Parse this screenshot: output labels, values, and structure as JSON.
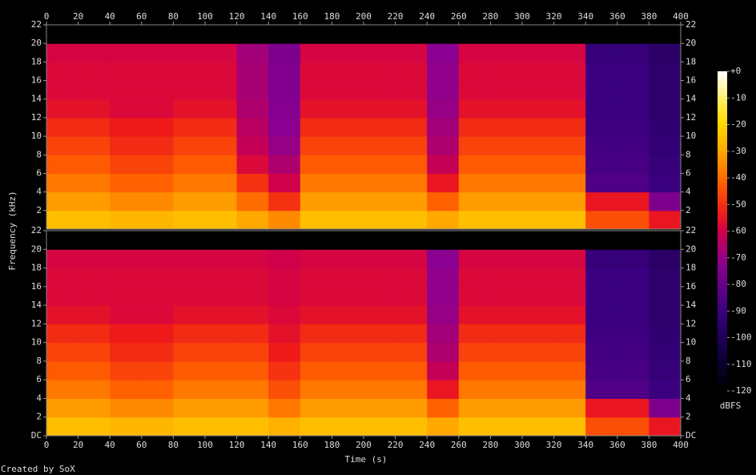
{
  "chart_data": {
    "type": "spectrogram",
    "x_label": "Time (s)",
    "y_label": "Frequency (kHz)",
    "footer": "Created by SoX",
    "xlim": [
      0,
      400
    ],
    "xticks": [
      0,
      20,
      40,
      60,
      80,
      100,
      120,
      140,
      160,
      180,
      200,
      220,
      240,
      260,
      280,
      300,
      320,
      340,
      360,
      380,
      400
    ],
    "time_bins": [
      0,
      20,
      40,
      60,
      80,
      100,
      120,
      140,
      160,
      180,
      200,
      220,
      240,
      260,
      280,
      300,
      320,
      340,
      360,
      380,
      400
    ],
    "freq_bins": [
      0,
      2,
      4,
      6,
      8,
      10,
      12,
      14,
      16,
      18,
      20,
      22
    ],
    "clim": [
      -120,
      0
    ],
    "clabel": "dBFS",
    "cticks": [
      {
        "value": 0,
        "label": "+0"
      },
      -10,
      -20,
      -30,
      -40,
      -50,
      -60,
      -70,
      -80,
      -90,
      -100,
      -110,
      -120
    ],
    "panels": [
      {
        "ylim": [
          0,
          22
        ],
        "yticks": [
          2,
          4,
          6,
          8,
          10,
          12,
          14,
          16,
          18,
          20,
          22
        ],
        "values": [
          [
            -25,
            -32,
            -38,
            -43,
            -47,
            -51,
            -56,
            -58,
            -58,
            -59,
            -120
          ],
          [
            -25,
            -32,
            -38,
            -43,
            -47,
            -51,
            -56,
            -58,
            -58,
            -59,
            -120
          ],
          [
            -27,
            -35,
            -42,
            -47,
            -51,
            -54,
            -58,
            -58,
            -58,
            -59,
            -120
          ],
          [
            -27,
            -35,
            -42,
            -47,
            -51,
            -54,
            -58,
            -58,
            -58,
            -59,
            -120
          ],
          [
            -25,
            -32,
            -38,
            -43,
            -47,
            -51,
            -56,
            -58,
            -58,
            -59,
            -120
          ],
          [
            -25,
            -32,
            -38,
            -43,
            -47,
            -51,
            -56,
            -58,
            -58,
            -59,
            -120
          ],
          [
            -30,
            -40,
            -50,
            -58,
            -62,
            -64,
            -66,
            -67,
            -67,
            -68,
            -120
          ],
          [
            -35,
            -50,
            -60,
            -66,
            -70,
            -72,
            -73,
            -74,
            -74,
            -75,
            -120
          ],
          [
            -25,
            -32,
            -38,
            -43,
            -47,
            -51,
            -56,
            -58,
            -58,
            -59,
            -120
          ],
          [
            -25,
            -32,
            -38,
            -43,
            -47,
            -51,
            -56,
            -58,
            -58,
            -59,
            -120
          ],
          [
            -25,
            -32,
            -38,
            -43,
            -47,
            -51,
            -56,
            -58,
            -58,
            -59,
            -120
          ],
          [
            -25,
            -32,
            -38,
            -43,
            -47,
            -51,
            -56,
            -58,
            -58,
            -59,
            -120
          ],
          [
            -30,
            -42,
            -55,
            -62,
            -66,
            -68,
            -70,
            -71,
            -71,
            -72,
            -120
          ],
          [
            -25,
            -32,
            -38,
            -43,
            -47,
            -51,
            -56,
            -58,
            -58,
            -59,
            -120
          ],
          [
            -25,
            -32,
            -38,
            -43,
            -47,
            -51,
            -56,
            -58,
            -58,
            -59,
            -120
          ],
          [
            -25,
            -32,
            -38,
            -43,
            -47,
            -51,
            -56,
            -58,
            -58,
            -59,
            -120
          ],
          [
            -25,
            -32,
            -38,
            -43,
            -47,
            -51,
            -56,
            -58,
            -58,
            -59,
            -120
          ],
          [
            -45,
            -55,
            -85,
            -87,
            -88,
            -89,
            -90,
            -90,
            -90,
            -92,
            -120
          ],
          [
            -45,
            -55,
            -85,
            -87,
            -88,
            -89,
            -90,
            -90,
            -90,
            -92,
            -120
          ],
          [
            -55,
            -75,
            -90,
            -92,
            -93,
            -94,
            -95,
            -95,
            -95,
            -96,
            -120
          ]
        ]
      },
      {
        "ylim": [
          0,
          22
        ],
        "yticks": [
          {
            "value": 0,
            "label": "DC"
          },
          2,
          4,
          6,
          8,
          10,
          12,
          14,
          16,
          18,
          20,
          22
        ],
        "values": [
          [
            -25,
            -32,
            -38,
            -43,
            -47,
            -51,
            -56,
            -58,
            -58,
            -59,
            -120
          ],
          [
            -25,
            -32,
            -38,
            -43,
            -47,
            -51,
            -56,
            -58,
            -58,
            -59,
            -120
          ],
          [
            -27,
            -35,
            -42,
            -47,
            -51,
            -54,
            -58,
            -58,
            -58,
            -59,
            -120
          ],
          [
            -27,
            -35,
            -42,
            -47,
            -51,
            -54,
            -58,
            -58,
            -58,
            -59,
            -120
          ],
          [
            -25,
            -32,
            -38,
            -43,
            -47,
            -51,
            -56,
            -58,
            -58,
            -59,
            -120
          ],
          [
            -25,
            -32,
            -38,
            -43,
            -47,
            -51,
            -56,
            -58,
            -58,
            -59,
            -120
          ],
          [
            -25,
            -32,
            -38,
            -43,
            -47,
            -51,
            -56,
            -58,
            -58,
            -59,
            -120
          ],
          [
            -28,
            -38,
            -45,
            -50,
            -54,
            -56,
            -58,
            -59,
            -59,
            -60,
            -120
          ],
          [
            -25,
            -32,
            -38,
            -43,
            -47,
            -51,
            -56,
            -58,
            -58,
            -59,
            -120
          ],
          [
            -25,
            -32,
            -38,
            -43,
            -47,
            -51,
            -56,
            -58,
            -58,
            -59,
            -120
          ],
          [
            -25,
            -32,
            -38,
            -43,
            -47,
            -51,
            -56,
            -58,
            -58,
            -59,
            -120
          ],
          [
            -25,
            -32,
            -38,
            -43,
            -47,
            -51,
            -56,
            -58,
            -58,
            -59,
            -120
          ],
          [
            -30,
            -42,
            -55,
            -62,
            -66,
            -68,
            -70,
            -71,
            -71,
            -72,
            -120
          ],
          [
            -25,
            -32,
            -38,
            -43,
            -47,
            -51,
            -56,
            -58,
            -58,
            -59,
            -120
          ],
          [
            -25,
            -32,
            -38,
            -43,
            -47,
            -51,
            -56,
            -58,
            -58,
            -59,
            -120
          ],
          [
            -25,
            -32,
            -38,
            -43,
            -47,
            -51,
            -56,
            -58,
            -58,
            -59,
            -120
          ],
          [
            -25,
            -32,
            -38,
            -43,
            -47,
            -51,
            -56,
            -58,
            -58,
            -59,
            -120
          ],
          [
            -45,
            -55,
            -85,
            -87,
            -88,
            -89,
            -90,
            -90,
            -90,
            -92,
            -120
          ],
          [
            -45,
            -55,
            -85,
            -87,
            -88,
            -89,
            -90,
            -90,
            -90,
            -92,
            -120
          ],
          [
            -55,
            -75,
            -90,
            -92,
            -93,
            -94,
            -95,
            -95,
            -95,
            -96,
            -120
          ]
        ]
      }
    ]
  }
}
